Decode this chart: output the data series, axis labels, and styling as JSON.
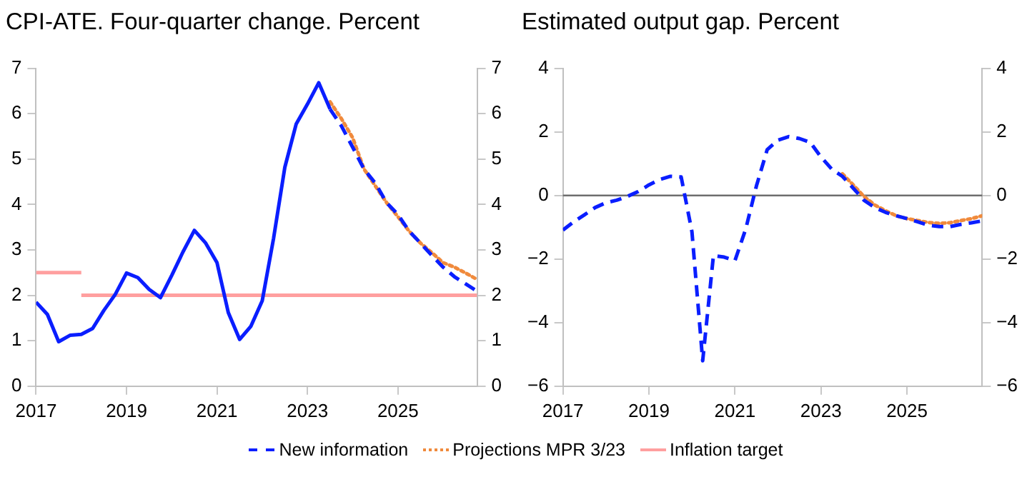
{
  "chart_data": [
    {
      "type": "line",
      "title": "CPI-ATE. Four-quarter change. Percent",
      "legend": "bottom",
      "grid": false,
      "xlim": [
        2017,
        2026.75
      ],
      "xticks": [
        2017,
        2019,
        2021,
        2023,
        2025
      ],
      "ylim": [
        0,
        7
      ],
      "yticks": [
        0,
        1,
        2,
        3,
        4,
        5,
        6,
        7
      ],
      "y2lim": [
        0,
        7
      ],
      "y2ticks": [
        0,
        1,
        2,
        3,
        4,
        5,
        6,
        7
      ],
      "series": [
        {
          "color": "#0a1eff",
          "line_style": "solid",
          "x": [
            2017,
            2017.25,
            2017.5,
            2017.75,
            2018,
            2018.25,
            2018.5,
            2018.75,
            2019,
            2019.25,
            2019.5,
            2019.75,
            2020,
            2020.25,
            2020.5,
            2020.75,
            2021,
            2021.25,
            2021.5,
            2021.75,
            2022,
            2022.25,
            2022.5,
            2022.75,
            2023,
            2023.25,
            2023.5
          ],
          "values": [
            1.85,
            1.58,
            0.98,
            1.12,
            1.14,
            1.27,
            1.67,
            2.02,
            2.49,
            2.39,
            2.13,
            1.95,
            2.44,
            2.96,
            3.43,
            3.15,
            2.72,
            1.62,
            1.03,
            1.32,
            1.88,
            3.25,
            4.82,
            5.77,
            6.21,
            6.68,
            6.1
          ]
        },
        {
          "name": "New information",
          "color": "#0a1eff",
          "line_style": "dashed",
          "x": [
            2023.5,
            2023.75,
            2024,
            2024.25,
            2024.5,
            2024.75,
            2025,
            2025.25,
            2025.5,
            2025.75,
            2026,
            2026.25,
            2026.5,
            2026.75
          ],
          "values": [
            6.1,
            5.73,
            5.26,
            4.78,
            4.47,
            4.04,
            3.78,
            3.41,
            3.15,
            2.88,
            2.62,
            2.41,
            2.25,
            2.09
          ]
        },
        {
          "name": "Projections MPR 3/23",
          "color": "#f08a3c",
          "line_style": "dotted",
          "x": [
            2023.5,
            2023.75,
            2024,
            2024.25,
            2024.5,
            2024.75,
            2025,
            2025.25,
            2025.5,
            2025.75,
            2026,
            2026.25,
            2026.5,
            2026.75
          ],
          "values": [
            6.26,
            5.89,
            5.47,
            4.78,
            4.41,
            4.04,
            3.73,
            3.41,
            3.15,
            2.94,
            2.72,
            2.62,
            2.49,
            2.35
          ]
        },
        {
          "name": "Inflation target",
          "color": "#ff9f9f",
          "line_style": "solid",
          "x": [
            2018,
            2026.75
          ],
          "values": [
            2,
            2
          ]
        },
        {
          "color": "#ff9f9f",
          "line_style": "solid",
          "x": [
            2017,
            2018
          ],
          "values": [
            2.5,
            2.5
          ]
        }
      ]
    },
    {
      "type": "line",
      "title": "Estimated output gap. Percent",
      "legend": false,
      "grid": false,
      "xlim": [
        2017,
        2026.75
      ],
      "xticks": [
        2017,
        2019,
        2021,
        2023,
        2025
      ],
      "ylim": [
        -6,
        4
      ],
      "yticks": [
        -6,
        -4,
        -2,
        0,
        2,
        4
      ],
      "y2lim": [
        -6,
        4
      ],
      "y2ticks": [
        -6,
        -4,
        -2,
        0,
        2,
        4
      ],
      "ref_lines": [
        {
          "axis": "y",
          "value": 0,
          "color": "#6e6e6e"
        }
      ],
      "series": [
        {
          "color": "#0a1eff",
          "line_style": "dashed",
          "x": [
            2017,
            2017.25,
            2017.5,
            2017.75,
            2018,
            2018.25,
            2018.5,
            2018.75,
            2019,
            2019.25,
            2019.5,
            2019.75,
            2020,
            2020.25,
            2020.5,
            2020.75,
            2021,
            2021.25,
            2021.5,
            2021.75,
            2022,
            2022.25,
            2022.5,
            2022.75,
            2023,
            2023.25,
            2023.5,
            2023.75,
            2024,
            2024.25,
            2024.5,
            2024.75,
            2025,
            2025.25,
            2025.5,
            2025.75,
            2026,
            2026.25,
            2026.5,
            2026.75
          ],
          "values": [
            -1.09,
            -0.83,
            -0.61,
            -0.38,
            -0.23,
            -0.15,
            -0.03,
            0.12,
            0.33,
            0.5,
            0.6,
            0.58,
            -1.14,
            -5.2,
            -1.89,
            -1.94,
            -2.05,
            -1.06,
            0.3,
            1.44,
            1.74,
            1.85,
            1.79,
            1.67,
            1.21,
            0.83,
            0.6,
            0.23,
            -0.15,
            -0.38,
            -0.53,
            -0.64,
            -0.73,
            -0.83,
            -0.94,
            -0.98,
            -0.98,
            -0.91,
            -0.86,
            -0.8
          ]
        },
        {
          "color": "#f08a3c",
          "line_style": "dotted",
          "x": [
            2023.5,
            2023.75,
            2024,
            2024.25,
            2024.5,
            2024.75,
            2025,
            2025.25,
            2025.5,
            2025.75,
            2026,
            2026.25,
            2026.5,
            2026.75
          ],
          "values": [
            0.68,
            0.33,
            -0.03,
            -0.3,
            -0.48,
            -0.64,
            -0.73,
            -0.79,
            -0.85,
            -0.88,
            -0.86,
            -0.79,
            -0.73,
            -0.64
          ]
        }
      ]
    }
  ]
}
